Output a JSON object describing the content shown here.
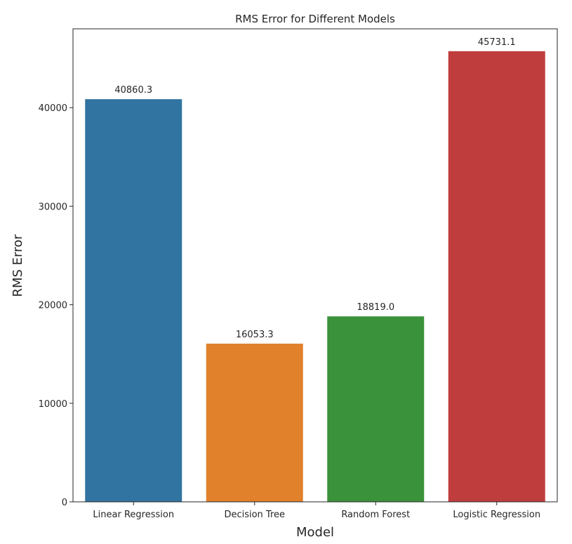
{
  "chart_data": {
    "type": "bar",
    "title": "RMS Error for Different Models",
    "xlabel": "Model",
    "ylabel": "RMS Error",
    "categories": [
      "Linear Regression",
      "Decision Tree",
      "Random Forest",
      "Logistic Regression"
    ],
    "values": [
      40860.3,
      16053.3,
      18819.0,
      45731.1
    ],
    "value_labels": [
      "40860.3",
      "16053.3",
      "18819.0",
      "45731.1"
    ],
    "colors": [
      "#3274a1",
      "#e1812c",
      "#3a923a",
      "#c03d3e"
    ],
    "ylim": [
      0,
      48000
    ],
    "yticks": [
      0,
      10000,
      20000,
      30000,
      40000
    ],
    "ytick_labels": [
      "0",
      "10000",
      "20000",
      "30000",
      "40000"
    ],
    "grid": false,
    "legend": "none"
  }
}
